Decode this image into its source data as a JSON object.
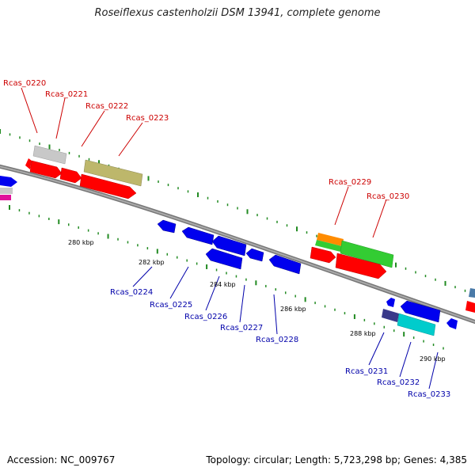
{
  "title": "Roseiflexus castenholzii DSM 13941, complete genome",
  "footer": {
    "accession": "Accession: NC_009767",
    "summary": "Topology: circular; Length: 5,723,298 bp; Genes: 4,385"
  },
  "ticks": [
    "280 kbp",
    "282 kbp",
    "284 kbp",
    "286 kbp",
    "288 kbp",
    "290 kbp"
  ],
  "genes_top": [
    "Rcas_0220",
    "Rcas_0221",
    "Rcas_0222",
    "Rcas_0223",
    "Rcas_0229",
    "Rcas_0230"
  ],
  "genes_bottom": [
    "Rcas_0224",
    "Rcas_0225",
    "Rcas_0226",
    "Rcas_0227",
    "Rcas_0228",
    "Rcas_0231",
    "Rcas_0232",
    "Rcas_0233"
  ],
  "colors": {
    "forward_label": "#cc0000",
    "reverse_label": "#0000aa",
    "red": "#ff0000",
    "blue": "#0000ee",
    "grey": "#c0c0c0",
    "olive": "#bdb76b",
    "green": "#33cc33",
    "orange": "#ff8c00",
    "cyan": "#00cccc",
    "navy": "#3a3a8a",
    "magenta": "#e0109a",
    "backbone": "#888888",
    "dots": "#228b22"
  }
}
